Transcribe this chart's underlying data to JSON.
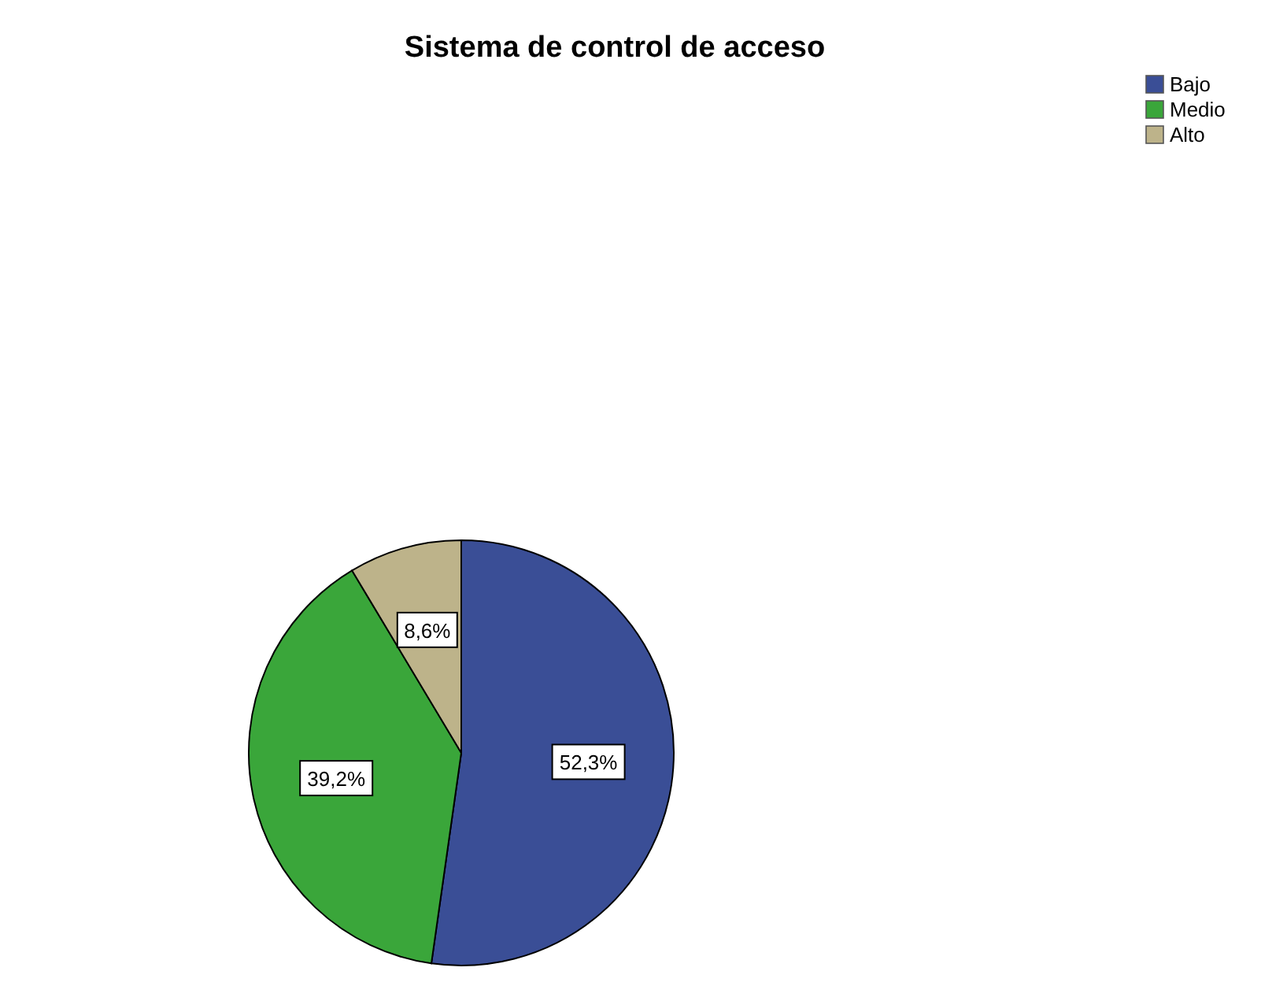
{
  "chart_data": {
    "type": "pie",
    "title": "Sistema de control de acceso",
    "categories": [
      "Bajo",
      "Medio",
      "Alto"
    ],
    "values": [
      52.3,
      39.2,
      8.6
    ],
    "colors": [
      "#3a4e96",
      "#3aa63a",
      "#bdb38a"
    ],
    "value_labels": [
      "52,3%",
      "39,2%",
      "8,6%"
    ],
    "legend": "top right"
  }
}
